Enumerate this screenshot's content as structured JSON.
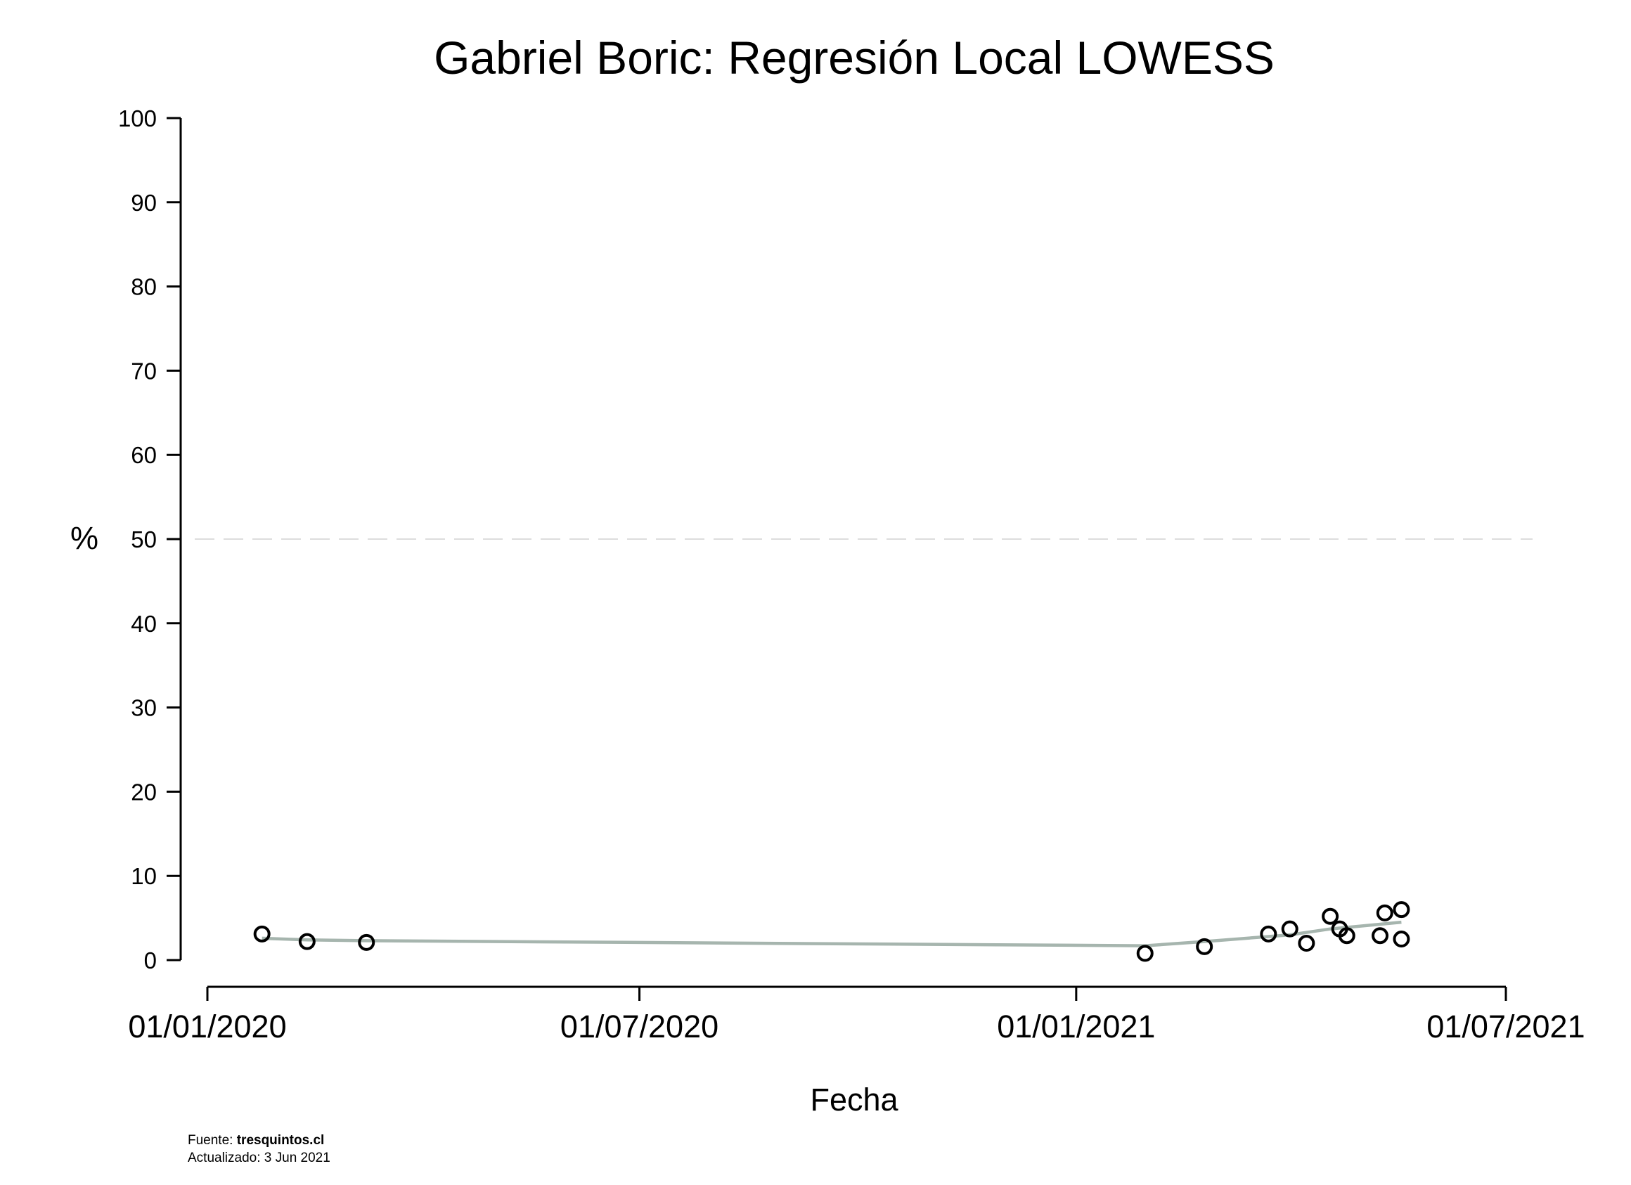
{
  "chart_data": {
    "type": "scatter",
    "title": "Gabriel Boric: Regresión Local LOWESS",
    "xlabel": "Fecha",
    "ylabel": "%",
    "ylim": [
      0,
      100
    ],
    "yticks": [
      "0",
      "10",
      "20",
      "30",
      "40",
      "50",
      "60",
      "70",
      "80",
      "90",
      "100"
    ],
    "xlim": [
      "2020-01-01",
      "2021-07-01"
    ],
    "xticks": [
      "01/01/2020",
      "01/07/2020",
      "01/01/2021",
      "01/07/2021"
    ],
    "reference_line": {
      "y": 50,
      "style": "dashed",
      "color": "#dddddd"
    },
    "grid": false,
    "legend": "none",
    "point_color": "#000000",
    "smooth_color": "#a6b5ae",
    "points": [
      {
        "x": "2020-01-24",
        "y": 3.1
      },
      {
        "x": "2020-02-12",
        "y": 2.2
      },
      {
        "x": "2020-03-08",
        "y": 2.1
      },
      {
        "x": "2021-01-30",
        "y": 0.8
      },
      {
        "x": "2021-02-24",
        "y": 1.6
      },
      {
        "x": "2021-03-23",
        "y": 3.1
      },
      {
        "x": "2021-04-01",
        "y": 3.7
      },
      {
        "x": "2021-04-08",
        "y": 2.0
      },
      {
        "x": "2021-04-18",
        "y": 5.2
      },
      {
        "x": "2021-04-22",
        "y": 3.7
      },
      {
        "x": "2021-04-25",
        "y": 2.9
      },
      {
        "x": "2021-05-09",
        "y": 2.9
      },
      {
        "x": "2021-05-11",
        "y": 5.6
      },
      {
        "x": "2021-05-18",
        "y": 6.0
      },
      {
        "x": "2021-05-18",
        "y": 2.5
      }
    ],
    "smooth": [
      {
        "x": "2020-01-24",
        "y": 2.6
      },
      {
        "x": "2020-02-12",
        "y": 2.4
      },
      {
        "x": "2020-03-08",
        "y": 2.3
      },
      {
        "x": "2021-01-30",
        "y": 1.7
      },
      {
        "x": "2021-02-24",
        "y": 2.2
      },
      {
        "x": "2021-03-23",
        "y": 2.8
      },
      {
        "x": "2021-04-01",
        "y": 3.0
      },
      {
        "x": "2021-04-18",
        "y": 3.7
      },
      {
        "x": "2021-05-18",
        "y": 4.5
      }
    ]
  },
  "footer": {
    "source_label": "Fuente: ",
    "source_value": "tresquintos.cl",
    "updated": "Actualizado: 3 Jun 2021"
  }
}
